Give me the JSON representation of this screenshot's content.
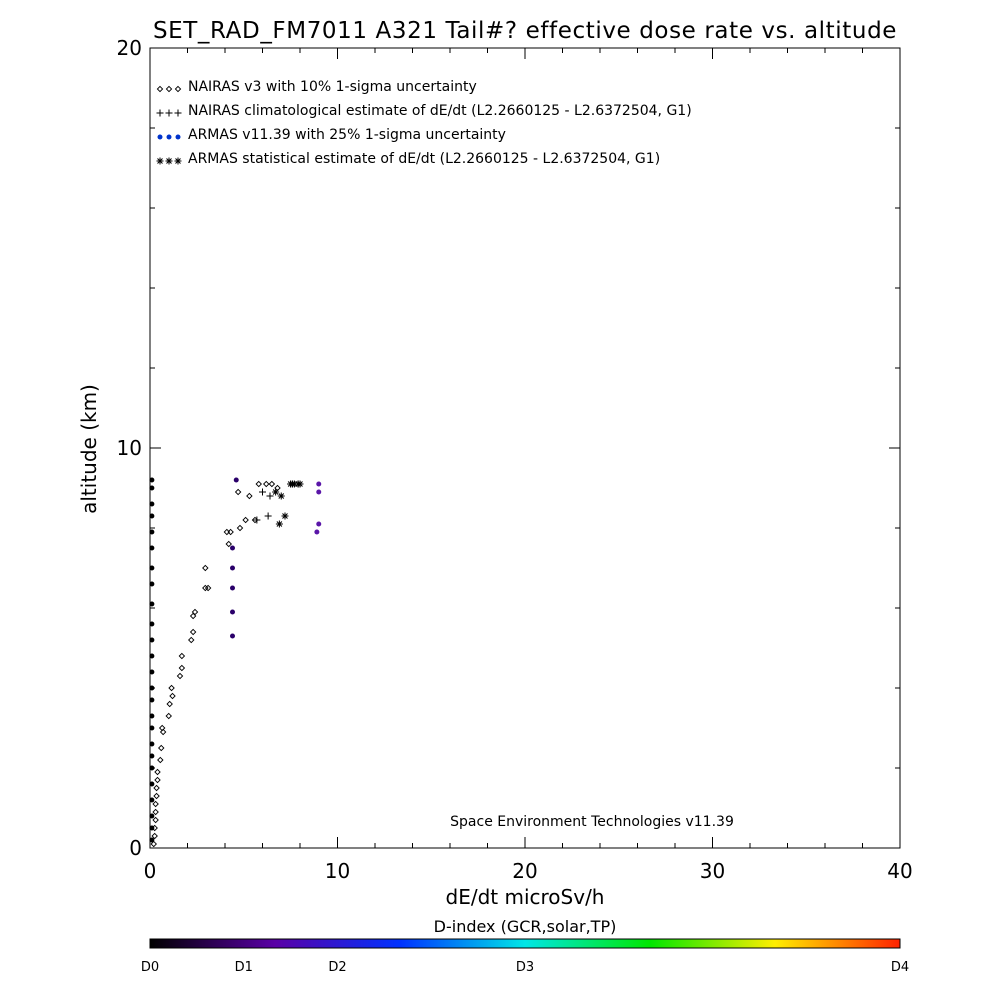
{
  "chart_data": {
    "type": "scatter",
    "title": "SET_RAD_FM7011  A321 Tail#? effective dose rate vs. altitude",
    "xlabel": "dE/dt microSv/h",
    "ylabel": "altitude (km)",
    "xlim": [
      0,
      40
    ],
    "ylim": [
      0,
      20
    ],
    "xticks": [
      0,
      10,
      20,
      30,
      40
    ],
    "yticks": [
      0,
      10,
      20
    ],
    "grid": false,
    "legend_position": "top-left",
    "annotation": "Space Environment Technologies v11.39",
    "series": [
      {
        "name": "NAIRAS v3 with 10% 1-sigma uncertainty",
        "marker": "diamond",
        "color": "#000000",
        "points": [
          [
            0.2,
            0.1
          ],
          [
            0.25,
            0.3
          ],
          [
            0.25,
            0.5
          ],
          [
            0.3,
            0.7
          ],
          [
            0.3,
            0.9
          ],
          [
            0.3,
            1.1
          ],
          [
            0.35,
            1.3
          ],
          [
            0.35,
            1.5
          ],
          [
            0.4,
            1.7
          ],
          [
            0.4,
            1.9
          ],
          [
            0.55,
            2.2
          ],
          [
            0.6,
            2.5
          ],
          [
            0.7,
            2.9
          ],
          [
            0.65,
            3.0
          ],
          [
            1.0,
            3.3
          ],
          [
            1.05,
            3.6
          ],
          [
            1.2,
            3.8
          ],
          [
            1.15,
            4.0
          ],
          [
            1.6,
            4.3
          ],
          [
            1.7,
            4.5
          ],
          [
            1.7,
            4.8
          ],
          [
            2.2,
            5.2
          ],
          [
            2.3,
            5.4
          ],
          [
            2.3,
            5.8
          ],
          [
            2.4,
            5.9
          ],
          [
            2.95,
            6.5
          ],
          [
            3.1,
            6.5
          ],
          [
            2.95,
            7.0
          ],
          [
            4.2,
            7.6
          ],
          [
            4.1,
            7.9
          ],
          [
            4.3,
            7.9
          ],
          [
            4.8,
            8.0
          ],
          [
            5.1,
            8.2
          ],
          [
            5.6,
            8.2
          ],
          [
            4.7,
            8.9
          ],
          [
            5.3,
            8.8
          ],
          [
            5.8,
            9.1
          ],
          [
            6.2,
            9.1
          ],
          [
            6.5,
            9.1
          ],
          [
            6.8,
            9.0
          ]
        ]
      },
      {
        "name": "NAIRAS climatological estimate of dE/dt (L2.2660125 - L2.6372504, G1)",
        "marker": "plus",
        "color": "#000000",
        "points": [
          [
            5.7,
            8.2
          ],
          [
            6.3,
            8.3
          ],
          [
            6.0,
            8.9
          ],
          [
            6.4,
            8.8
          ],
          [
            7.5,
            9.1
          ],
          [
            7.9,
            9.1
          ]
        ]
      },
      {
        "name": "ARMAS v11.39 with 25% 1-sigma uncertainty",
        "marker": "dot",
        "color": "#0033cc",
        "points": [
          [
            0.1,
            0.2
          ],
          [
            0.1,
            0.5
          ],
          [
            0.1,
            0.8
          ],
          [
            0.1,
            1.2
          ],
          [
            0.1,
            1.6
          ],
          [
            0.1,
            2.0
          ],
          [
            0.1,
            2.3
          ],
          [
            0.1,
            2.6
          ],
          [
            0.1,
            3.0
          ],
          [
            0.1,
            3.3
          ],
          [
            0.1,
            3.7
          ],
          [
            0.1,
            4.0
          ],
          [
            0.1,
            4.4
          ],
          [
            0.1,
            4.8
          ],
          [
            0.1,
            5.2
          ],
          [
            0.1,
            5.6
          ],
          [
            0.1,
            6.1
          ],
          [
            0.1,
            6.6
          ],
          [
            0.1,
            7.0
          ],
          [
            0.1,
            7.5
          ],
          [
            0.1,
            7.9
          ],
          [
            0.1,
            8.3
          ],
          [
            0.1,
            8.6
          ],
          [
            0.1,
            9.0
          ],
          [
            0.1,
            9.2
          ],
          [
            4.4,
            5.3
          ],
          [
            4.4,
            5.9
          ],
          [
            4.4,
            6.5
          ],
          [
            4.4,
            7.0
          ],
          [
            4.4,
            7.5
          ],
          [
            4.6,
            9.2
          ],
          [
            8.9,
            7.9
          ],
          [
            9.0,
            8.1
          ],
          [
            9.0,
            8.9
          ],
          [
            9.0,
            9.1
          ]
        ]
      },
      {
        "name": "ARMAS statistical estimate of dE/dt (L2.2660125 - L2.6372504, G1)",
        "marker": "asterisk",
        "color": "#000000",
        "points": [
          [
            6.9,
            8.1
          ],
          [
            7.2,
            8.3
          ],
          [
            7.0,
            8.8
          ],
          [
            6.7,
            8.9
          ],
          [
            7.5,
            9.1
          ],
          [
            7.7,
            9.1
          ],
          [
            7.9,
            9.1
          ],
          [
            8.0,
            9.1
          ],
          [
            7.6,
            9.1
          ]
        ]
      }
    ],
    "point_colors_by_dindex": {
      "armas_low_altitude": "#000000",
      "armas_high_dose": "#2a006a",
      "armas_highest_dose": "#5a16a8"
    },
    "colorbar": {
      "title": "D-index (GCR,solar,TP)",
      "labels": [
        "D0",
        "D1",
        "D2",
        "D3",
        "D4"
      ],
      "label_fractions": [
        0.0,
        0.125,
        0.25,
        0.5,
        1.0
      ],
      "gradient_stops": [
        "#000000",
        "#5a00a6",
        "#0032ff",
        "#00e6e6",
        "#00e600",
        "#ffee00",
        "#ff2200"
      ]
    }
  }
}
